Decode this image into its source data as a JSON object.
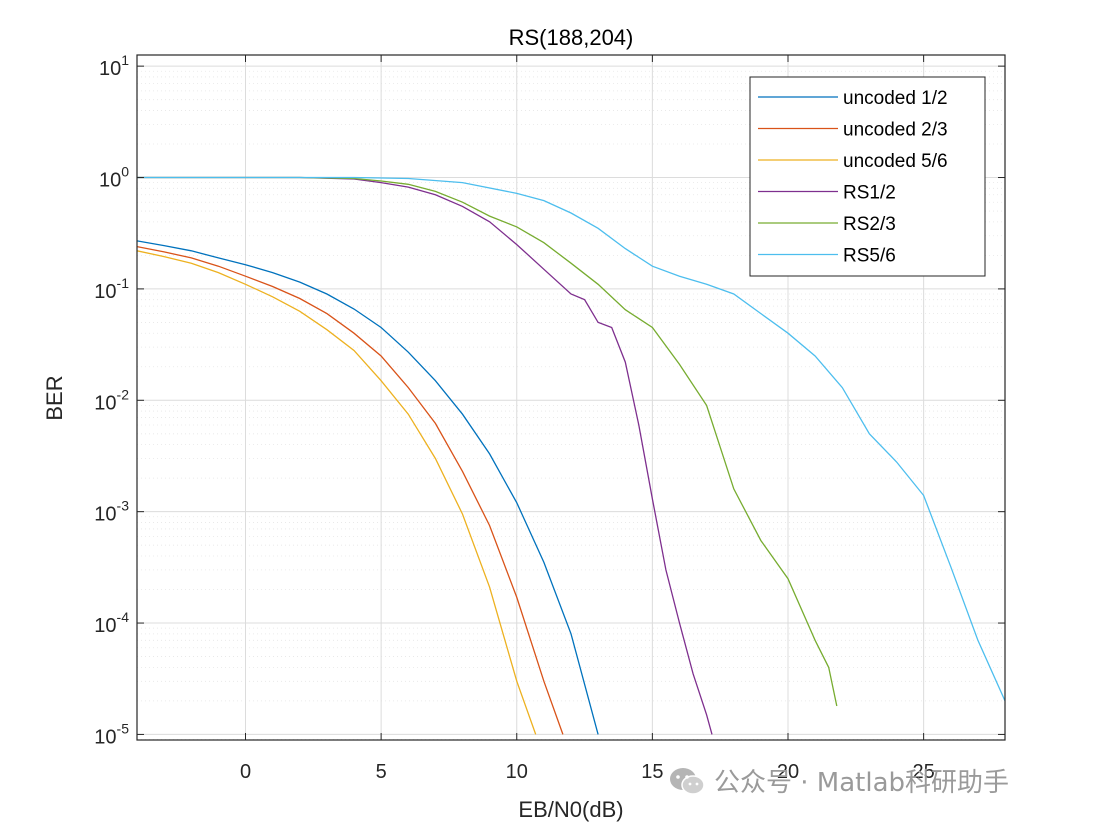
{
  "chart_data": {
    "type": "line",
    "title": "RS(188,204)",
    "xlabel": "EB/N0(dB)",
    "ylabel": "BER",
    "xlim": [
      -4,
      28
    ],
    "ylim_log10": [
      -5.05,
      1.1
    ],
    "y_scale": "log",
    "grid": true,
    "legend_placement": "top-right",
    "xticks": [
      0,
      5,
      10,
      15,
      20,
      25
    ],
    "yticks": [
      {
        "base": "10",
        "exp": "1",
        "value": 10
      },
      {
        "base": "10",
        "exp": "0",
        "value": 1
      },
      {
        "base": "10",
        "exp": "-1",
        "value": 0.1
      },
      {
        "base": "10",
        "exp": "-2",
        "value": 0.01
      },
      {
        "base": "10",
        "exp": "-3",
        "value": 0.001
      },
      {
        "base": "10",
        "exp": "-4",
        "value": 0.0001
      },
      {
        "base": "10",
        "exp": "-5",
        "value": 1e-05
      }
    ],
    "series": [
      {
        "name": "uncoded 1/2",
        "color": "#0072BD",
        "x": [
          -4,
          -3,
          -2,
          -1,
          0,
          1,
          2,
          3,
          4,
          5,
          6,
          7,
          8,
          9,
          10,
          11,
          12,
          13
        ],
        "y": [
          0.27,
          0.245,
          0.22,
          0.19,
          0.165,
          0.14,
          0.115,
          0.09,
          0.066,
          0.045,
          0.027,
          0.015,
          0.0075,
          0.0033,
          0.0012,
          0.00035,
          8e-05,
          1e-05
        ]
      },
      {
        "name": "uncoded 2/3",
        "color": "#D95319",
        "x": [
          -4,
          -3,
          -2,
          -1,
          0,
          1,
          2,
          3,
          4,
          5,
          6,
          7,
          8,
          9,
          10,
          11,
          11.7
        ],
        "y": [
          0.24,
          0.215,
          0.19,
          0.16,
          0.13,
          0.105,
          0.082,
          0.06,
          0.04,
          0.025,
          0.013,
          0.0062,
          0.0023,
          0.00075,
          0.00017,
          3e-05,
          1e-05
        ]
      },
      {
        "name": "uncoded 5/6",
        "color": "#EDB120",
        "x": [
          -4,
          -3,
          -2,
          -1,
          0,
          1,
          2,
          3,
          4,
          5,
          6,
          7,
          8,
          9,
          10,
          10.7
        ],
        "y": [
          0.22,
          0.195,
          0.17,
          0.14,
          0.11,
          0.085,
          0.063,
          0.043,
          0.028,
          0.015,
          0.0075,
          0.003,
          0.00095,
          0.00021,
          3e-05,
          1e-05
        ]
      },
      {
        "name": "RS1/2",
        "color": "#7E2F8E",
        "x": [
          -4,
          0,
          2,
          4,
          5,
          6,
          7,
          8,
          9,
          10,
          11,
          12,
          12.5,
          13,
          13.5,
          14,
          14.5,
          15,
          15.5,
          16,
          16.5,
          17,
          17.2
        ],
        "y": [
          1,
          1,
          1,
          0.97,
          0.9,
          0.82,
          0.7,
          0.55,
          0.4,
          0.25,
          0.15,
          0.09,
          0.08,
          0.05,
          0.045,
          0.022,
          0.006,
          0.0013,
          0.0003,
          0.0001,
          3.5e-05,
          1.5e-05,
          1e-05
        ]
      },
      {
        "name": "RS2/3",
        "color": "#77AC30",
        "x": [
          -4,
          0,
          2,
          4,
          5,
          6,
          7,
          8,
          9,
          10,
          11,
          12,
          13,
          14,
          15,
          16,
          17,
          18,
          19,
          20,
          21,
          21.5,
          21.8
        ],
        "y": [
          1,
          1,
          1,
          0.98,
          0.93,
          0.87,
          0.75,
          0.6,
          0.45,
          0.36,
          0.26,
          0.17,
          0.11,
          0.065,
          0.045,
          0.021,
          0.009,
          0.0016,
          0.00055,
          0.00025,
          7e-05,
          4e-05,
          1.8e-05
        ]
      },
      {
        "name": "RS5/6",
        "color": "#4DBEEE",
        "x": [
          -4,
          0,
          2,
          4,
          6,
          8,
          10,
          11,
          12,
          13,
          14,
          15,
          16,
          17,
          18,
          19,
          20,
          21,
          22,
          23,
          24,
          25,
          26,
          27,
          28
        ],
        "y": [
          1,
          1,
          1,
          1,
          0.98,
          0.9,
          0.72,
          0.62,
          0.48,
          0.35,
          0.23,
          0.16,
          0.13,
          0.11,
          0.09,
          0.06,
          0.04,
          0.025,
          0.013,
          0.005,
          0.0028,
          0.0014,
          0.00032,
          7e-05,
          2e-05
        ]
      }
    ]
  },
  "watermark": {
    "text": "公众号 · Matlab科研助手",
    "icon": "wechat-logo-icon"
  }
}
